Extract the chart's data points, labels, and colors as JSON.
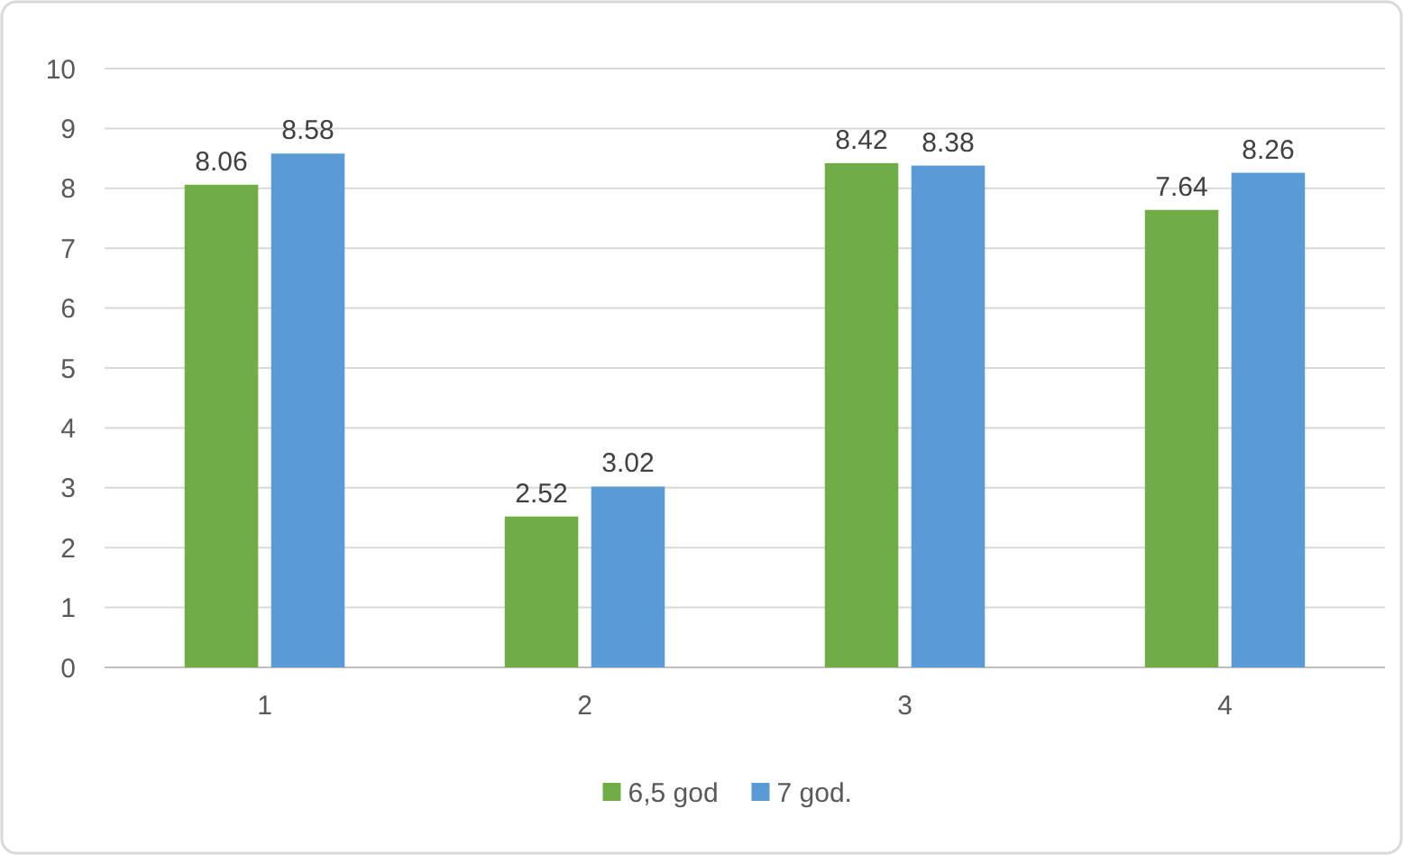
{
  "chart_data": {
    "type": "bar",
    "categories": [
      "1",
      "2",
      "3",
      "4"
    ],
    "series": [
      {
        "name": "6,5 god",
        "color": "#70ad47",
        "values": [
          8.06,
          2.52,
          8.42,
          7.64
        ]
      },
      {
        "name": "7 god.",
        "color": "#5b9bd5",
        "values": [
          8.58,
          3.02,
          8.38,
          8.26
        ]
      }
    ],
    "ylim": [
      0,
      10
    ],
    "yticks": [
      0,
      1,
      2,
      3,
      4,
      5,
      6,
      7,
      8,
      9,
      10
    ],
    "grid": "y",
    "data_labels": true,
    "legend": "bottom"
  }
}
